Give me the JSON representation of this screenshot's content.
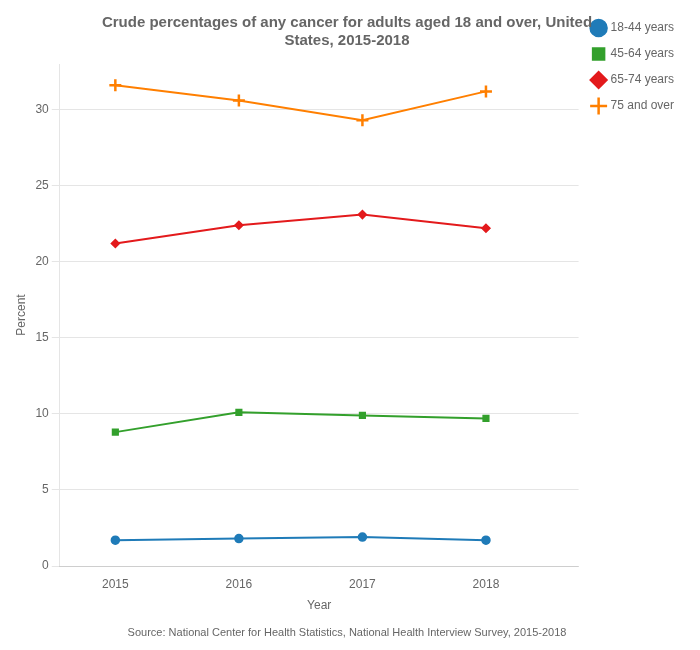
{
  "chart_data": {
    "type": "line",
    "title": "Crude percentages of any cancer for adults aged 18 and over, United\nStates, 2015-2018",
    "x_label": "Year",
    "y_label": "Percent",
    "annotations": [
      "Source: National Center for Health Statistics, National Health Interview Survey, 2015-2018"
    ],
    "x": [
      2015,
      2016,
      2017,
      2018
    ],
    "series": [
      {
        "name": "18-44 years",
        "values": [
          1.7,
          1.8,
          1.9,
          1.7
        ],
        "color": "#1f7bb8",
        "marker": "circle"
      },
      {
        "name": "45-64 years",
        "values": [
          8.8,
          10.1,
          9.9,
          9.7
        ],
        "color": "#33a02c",
        "marker": "square"
      },
      {
        "name": "65-74 years",
        "values": [
          21.2,
          22.4,
          23.1,
          22.2
        ],
        "color": "#e31a1c",
        "marker": "diamond"
      },
      {
        "name": "75 and over",
        "values": [
          31.6,
          30.6,
          29.3,
          31.2
        ],
        "color": "#ff7f00",
        "marker": "plus"
      }
    ],
    "xlim": [
      2014.55,
      2018.75
    ],
    "xticks": [
      2015,
      2016,
      2017,
      2018
    ],
    "ylim": [
      0,
      33
    ],
    "yticks": [
      0,
      5,
      10,
      15,
      20,
      25,
      30
    ],
    "grid": "y",
    "legend": "right"
  }
}
